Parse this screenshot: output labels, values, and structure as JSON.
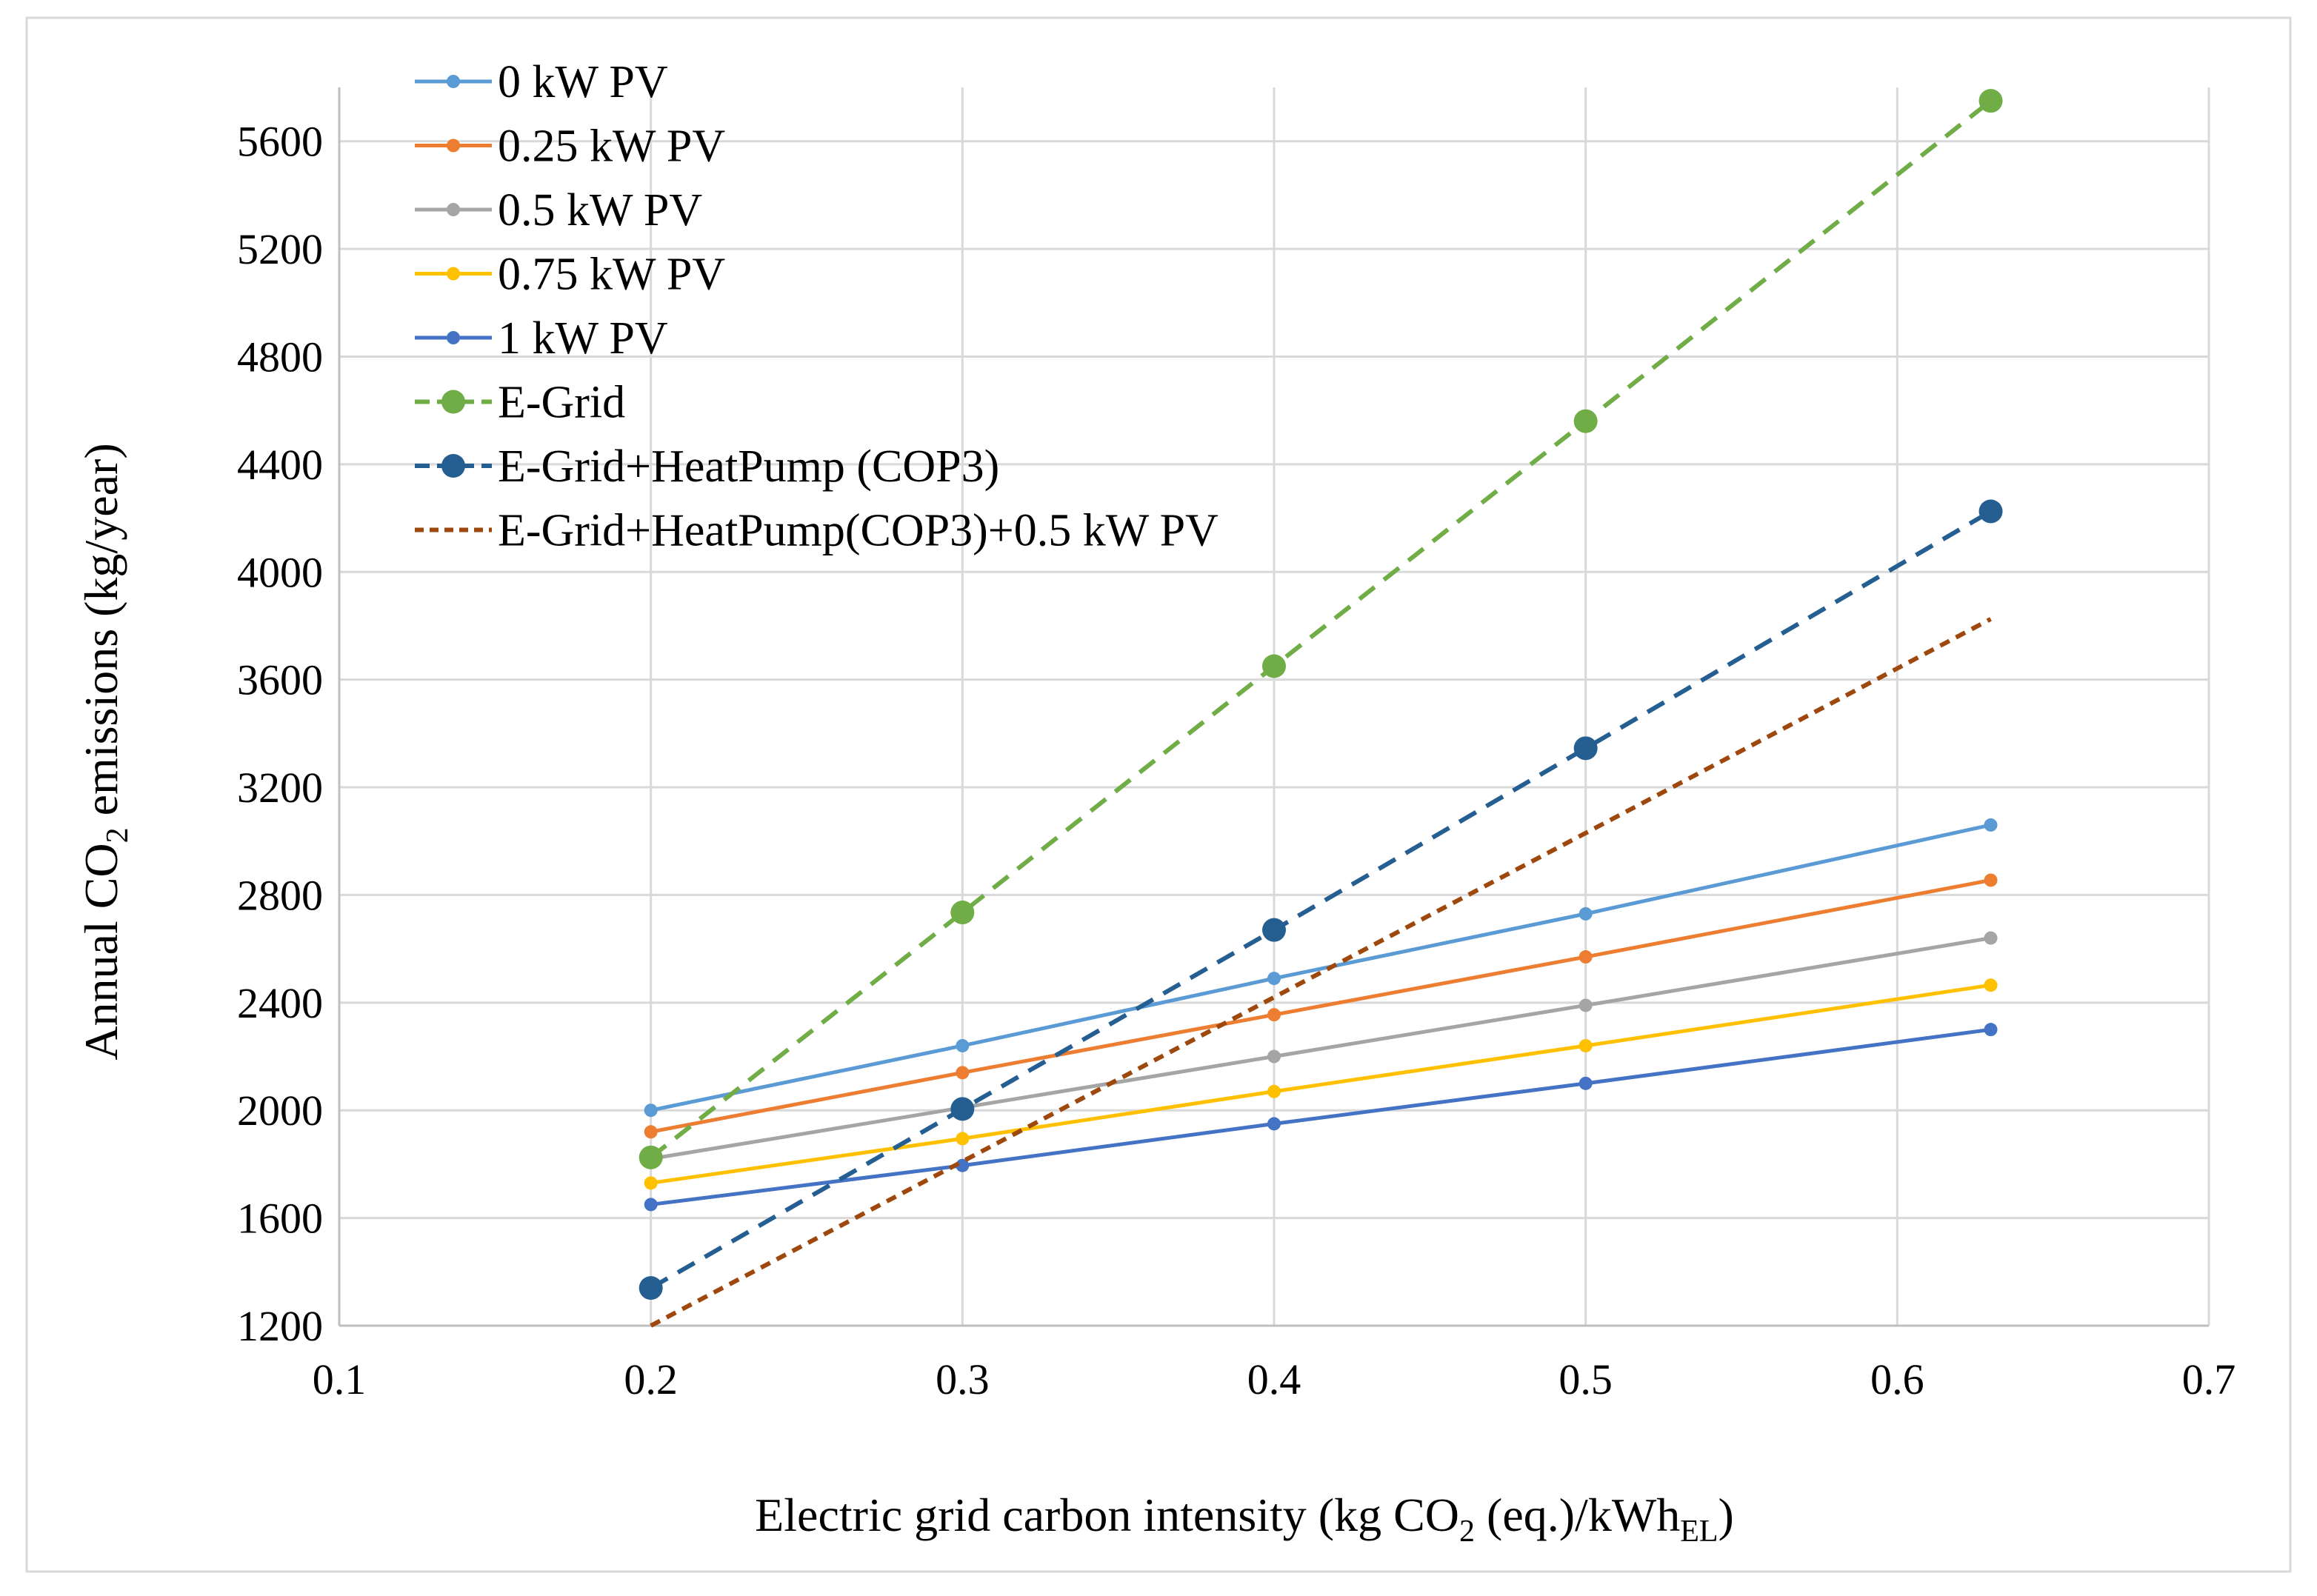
{
  "chart_data": {
    "type": "line",
    "title": "",
    "xlabel": {
      "prefix": "Electric grid carbon intensity (kg CO",
      "sub1": "2",
      "middle": " (eq.)/kWh",
      "sub2": "EL",
      "suffix": ")"
    },
    "ylabel": {
      "prefix": "Annual CO",
      "sub": "2",
      "suffix": " emissions (kg/year)"
    },
    "xlim": [
      0.1,
      0.7
    ],
    "ylim": [
      1200,
      5800
    ],
    "x_ticks": [
      "0.1",
      "0.2",
      "0.3",
      "0.4",
      "0.5",
      "0.6",
      "0.7"
    ],
    "y_ticks": [
      "1200",
      "1600",
      "2000",
      "2400",
      "2800",
      "3200",
      "3600",
      "4000",
      "4400",
      "4800",
      "5200",
      "5600"
    ],
    "grid": true,
    "legend_position": "top-left",
    "x": [
      0.2,
      0.3,
      0.4,
      0.5,
      0.63
    ],
    "series": [
      {
        "name": "0 kW PV",
        "color": "#5b9bd5",
        "dash": "solid",
        "marker": "small",
        "values": [
          2000,
          2240,
          2490,
          2730,
          3060
        ]
      },
      {
        "name": "0.25 kW PV",
        "color": "#ed7d31",
        "dash": "solid",
        "marker": "small",
        "values": [
          1920,
          2140,
          2355,
          2570,
          2855
        ]
      },
      {
        "name": "0.5 kW PV",
        "color": "#a5a5a5",
        "dash": "solid",
        "marker": "small",
        "values": [
          1820,
          2010,
          2200,
          2390,
          2640
        ]
      },
      {
        "name": "0.75 kW PV",
        "color": "#ffc000",
        "dash": "solid",
        "marker": "small",
        "values": [
          1730,
          1895,
          2070,
          2240,
          2465
        ]
      },
      {
        "name": "1 kW PV",
        "color": "#4472c4",
        "dash": "solid",
        "marker": "small",
        "values": [
          1650,
          1795,
          1950,
          2100,
          2300
        ]
      },
      {
        "name": "E-Grid",
        "color": "#70ad47",
        "dash": "dashed",
        "marker": "large",
        "values": [
          1825,
          2735,
          3650,
          4560,
          5750
        ]
      },
      {
        "name": "E-Grid+HeatPump (COP3)",
        "color": "#255e91",
        "dash": "dashed",
        "marker": "large",
        "values": [
          1340,
          2005,
          2670,
          3345,
          4225
        ]
      },
      {
        "name": "E-Grid+HeatPump(COP3)+0.5 kW PV",
        "color": "#9e480e",
        "dash": "dotted",
        "marker": "none",
        "values": [
          1200,
          1810,
          2420,
          3030,
          3825
        ]
      }
    ]
  }
}
